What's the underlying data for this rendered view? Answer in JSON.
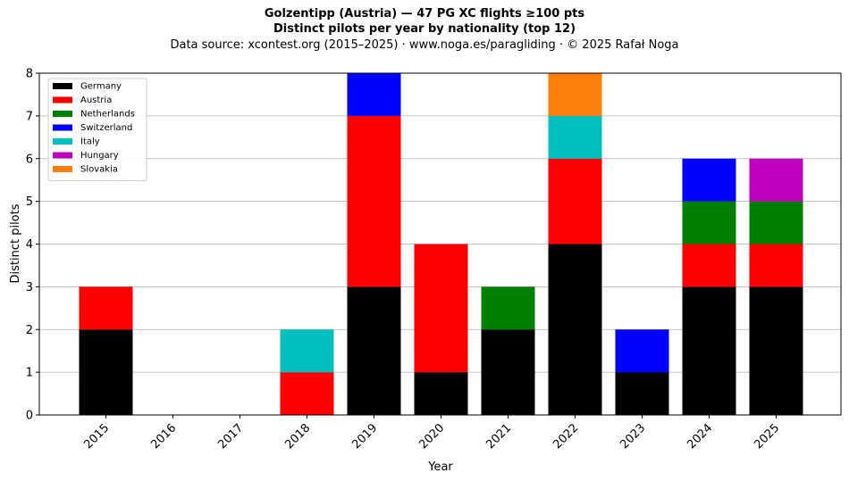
{
  "chart_data": {
    "type": "bar",
    "stacked": true,
    "title": "Golzentipp (Austria)  —  47 PG XC flights ≥100 pts",
    "subtitle": "Distinct pilots per year by nationality (top 12)",
    "source": "Data source: xcontest.org (2015–2025)  ·  www.noga.es/paragliding  ·  © 2025 Rafał Noga",
    "xlabel": "Year",
    "ylabel": "Distinct pilots",
    "ylim": [
      0,
      8
    ],
    "yticks": [
      0,
      1,
      2,
      3,
      4,
      5,
      6,
      7,
      8
    ],
    "grid": "horizontal",
    "legend_position": "top-left",
    "categories": [
      "2015",
      "2016",
      "2017",
      "2018",
      "2019",
      "2020",
      "2021",
      "2022",
      "2023",
      "2024",
      "2025"
    ],
    "series": [
      {
        "name": "Germany",
        "color": "#000000",
        "values": [
          2,
          0,
          0,
          0,
          3,
          1,
          2,
          4,
          1,
          3,
          3
        ]
      },
      {
        "name": "Austria",
        "color": "#ff0000",
        "values": [
          1,
          0,
          0,
          1,
          4,
          3,
          0,
          2,
          0,
          1,
          1
        ]
      },
      {
        "name": "Netherlands",
        "color": "#008000",
        "values": [
          0,
          0,
          0,
          0,
          0,
          0,
          1,
          0,
          0,
          1,
          1
        ]
      },
      {
        "name": "Switzerland",
        "color": "#0000ff",
        "values": [
          0,
          0,
          0,
          0,
          1,
          0,
          0,
          0,
          1,
          1,
          0
        ]
      },
      {
        "name": "Italy",
        "color": "#00bfbf",
        "values": [
          0,
          0,
          0,
          1,
          0,
          0,
          0,
          1,
          0,
          0,
          0
        ]
      },
      {
        "name": "Hungary",
        "color": "#bf00bf",
        "values": [
          0,
          0,
          0,
          0,
          0,
          0,
          0,
          0,
          0,
          0,
          1
        ]
      },
      {
        "name": "Slovakia",
        "color": "#ff7f0e",
        "values": [
          0,
          0,
          0,
          0,
          0,
          0,
          0,
          1,
          0,
          0,
          0
        ]
      }
    ]
  }
}
